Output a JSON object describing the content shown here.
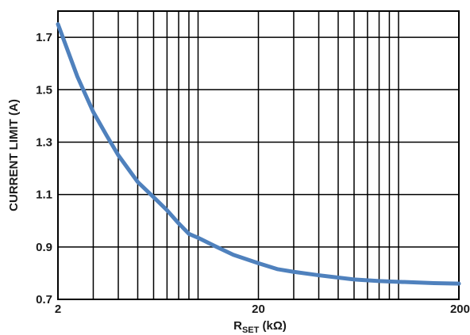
{
  "chart_data": {
    "type": "line",
    "title": "",
    "ylabel": "CURRENT LIMIT (A)",
    "xlabel": {
      "main": "R",
      "subscript": "SET",
      "unit": " (kΩ)"
    },
    "x_scale": "log",
    "xlim": [
      2,
      200
    ],
    "ylim": [
      0.7,
      1.8
    ],
    "x_tick_labels": [
      "2",
      "20",
      "200"
    ],
    "x_ticks": [
      2,
      20,
      200
    ],
    "y_tick_labels": [
      "0.7",
      "0.9",
      "1.1",
      "1.3",
      "1.5",
      "1.7"
    ],
    "y_ticks": [
      0.7,
      0.9,
      1.1,
      1.3,
      1.5,
      1.7
    ],
    "grid": true,
    "series": [
      {
        "color": "#4f81bd",
        "x": [
          2,
          2.5,
          3,
          3.5,
          4,
          5,
          6,
          7,
          8,
          9,
          10,
          12,
          15,
          20,
          25,
          30,
          40,
          50,
          60,
          80,
          100,
          150,
          200
        ],
        "y": [
          1.75,
          1.55,
          1.415,
          1.325,
          1.25,
          1.148,
          1.09,
          1.04,
          0.99,
          0.95,
          0.935,
          0.905,
          0.87,
          0.838,
          0.815,
          0.805,
          0.792,
          0.783,
          0.776,
          0.77,
          0.767,
          0.762,
          0.76
        ]
      }
    ]
  }
}
